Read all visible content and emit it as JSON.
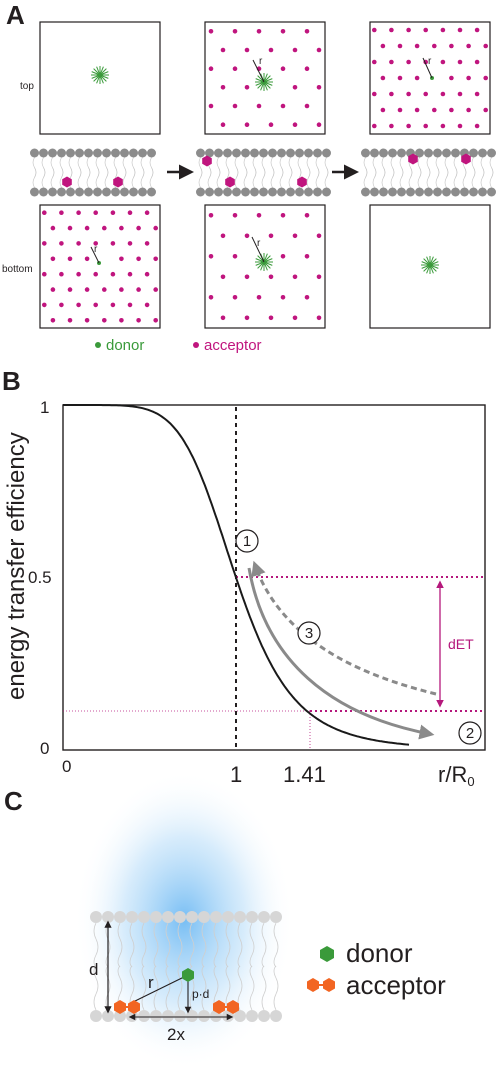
{
  "panelA": {
    "label": "A",
    "top_label": "top",
    "bottom_label": "bottom",
    "r_label": "r",
    "legend": {
      "donor": "donor",
      "acceptor": "acceptor"
    },
    "colors": {
      "donor": "#3a9a3a",
      "acceptor": "#c0157e",
      "lipid_head": "#8c8c8c"
    }
  },
  "panelB": {
    "label": "B",
    "ylabel": "energy transfer efficiency",
    "xlabel_main": "r/R",
    "xlabel_sub": "0",
    "y_ticks": [
      "1",
      "0.5",
      "0"
    ],
    "x_ticks": [
      "0",
      "1",
      "1.41"
    ],
    "dET_label": "dET",
    "markers": [
      "1",
      "2",
      "3"
    ],
    "colors": {
      "curve": "#1a1a1a",
      "guide": "#b5187c",
      "arrow": "#8a8a8a"
    }
  },
  "chart_data": {
    "type": "line",
    "title": "",
    "xlabel": "r/R0",
    "ylabel": "energy transfer efficiency",
    "function": "E = 1 / (1 + (r/R0)^6)",
    "x": [
      0,
      0.5,
      0.7,
      0.8,
      0.9,
      1.0,
      1.1,
      1.2,
      1.3,
      1.41,
      1.6,
      1.8,
      2.0
    ],
    "series": [
      {
        "name": "",
        "values": [
          1.0,
          0.985,
          0.895,
          0.792,
          0.653,
          0.5,
          0.361,
          0.251,
          0.172,
          0.111,
          0.056,
          0.029,
          0.015
        ]
      }
    ],
    "annotations": [
      {
        "x": 1,
        "y": 0.5,
        "label": "1"
      },
      {
        "x": 1.41,
        "y": 0.11,
        "label": "2"
      }
    ],
    "ylim": [
      0,
      1
    ],
    "xlim": [
      0,
      2
    ],
    "grid": false
  },
  "panelC": {
    "label": "C",
    "d_label": "d",
    "r_label": "r",
    "pd_label": "p·d",
    "twox_label": "2x",
    "legend": {
      "donor": "donor",
      "acceptor": "acceptor"
    },
    "colors": {
      "donor": "#3a9a3a",
      "acceptor": "#f26522",
      "glow": "#6bb8ee"
    }
  }
}
